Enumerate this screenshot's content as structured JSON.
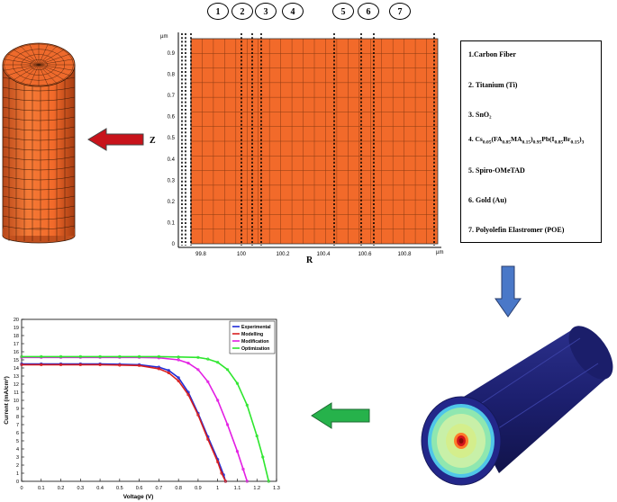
{
  "layer_numbers": [
    "1",
    "2",
    "3",
    "4",
    "5",
    "6",
    "7"
  ],
  "layers": [
    {
      "num": "1.",
      "name": "Carbon Fiber"
    },
    {
      "num": "2.",
      "name": "Titanium (Ti)"
    },
    {
      "num": "3.",
      "name": "SnO₂"
    },
    {
      "num": "4.",
      "name": "Cs0.05(FA0.85MA0.15)0.95Pb(I0.85Br0.15)3"
    },
    {
      "num": "5.",
      "name": "Spiro-OMeTAD"
    },
    {
      "num": "6.",
      "name": "Gold (Au)"
    },
    {
      "num": "7.",
      "name": "Polyolefin Elastromer (POE)"
    }
  ],
  "mesh_plot": {
    "unit_top": "µm",
    "unit_bottom": "µm",
    "z_label": "Z",
    "r_label": "R",
    "z_ticks": [
      "0.9",
      "0.8",
      "0.7",
      "0.6",
      "0.5",
      "0.4",
      "0.3",
      "0.2",
      "0.1",
      "0"
    ],
    "r_ticks": [
      "99.8",
      "100",
      "100.2",
      "100.4",
      "100.6",
      "100.8"
    ]
  },
  "colors": {
    "mesh_fill": "#f26a2a",
    "arrow_red": "#c8131b",
    "arrow_blue": "#4a78c8",
    "arrow_green": "#26b24b"
  },
  "chart_data": {
    "type": "line",
    "xlabel": "Voltage (V)",
    "ylabel": "Current (mA/cm²)",
    "xlim": [
      0,
      1.3
    ],
    "ylim": [
      0,
      20
    ],
    "x_ticks": [
      "0",
      "0.1",
      "0.2",
      "0.3",
      "0.4",
      "0.5",
      "0.6",
      "0.7",
      "0.8",
      "0.9",
      "1",
      "1.1",
      "1.2",
      "1.3"
    ],
    "y_ticks": [
      "0",
      "1",
      "2",
      "3",
      "4",
      "5",
      "6",
      "7",
      "8",
      "9",
      "10",
      "11",
      "12",
      "13",
      "14",
      "15",
      "16",
      "17",
      "18",
      "19",
      "20"
    ],
    "legend_position": "top-right",
    "series": [
      {
        "name": "Experimental",
        "color": "#1f2bd6",
        "x": [
          0,
          0.1,
          0.2,
          0.3,
          0.4,
          0.5,
          0.6,
          0.7,
          0.75,
          0.8,
          0.85,
          0.9,
          0.95,
          1.0,
          1.03,
          1.04
        ],
        "y": [
          14.5,
          14.5,
          14.5,
          14.5,
          14.5,
          14.45,
          14.4,
          14.1,
          13.7,
          12.8,
          11.0,
          8.4,
          5.5,
          2.7,
          0.8,
          0
        ]
      },
      {
        "name": "Modelling",
        "color": "#d81f1f",
        "x": [
          0,
          0.1,
          0.2,
          0.3,
          0.4,
          0.5,
          0.6,
          0.7,
          0.75,
          0.8,
          0.85,
          0.9,
          0.95,
          1.0,
          1.02,
          1.04
        ],
        "y": [
          14.4,
          14.4,
          14.4,
          14.4,
          14.4,
          14.35,
          14.3,
          13.9,
          13.4,
          12.4,
          10.7,
          8.2,
          5.2,
          2.4,
          1.0,
          0
        ]
      },
      {
        "name": "Modification",
        "color": "#e31ee3",
        "x": [
          0,
          0.1,
          0.2,
          0.3,
          0.4,
          0.5,
          0.6,
          0.7,
          0.8,
          0.85,
          0.9,
          0.95,
          1.0,
          1.05,
          1.1,
          1.13,
          1.15
        ],
        "y": [
          15.3,
          15.3,
          15.3,
          15.3,
          15.3,
          15.3,
          15.3,
          15.25,
          15.0,
          14.6,
          13.8,
          12.3,
          10.0,
          7.0,
          3.7,
          1.5,
          0
        ]
      },
      {
        "name": "Optimization",
        "color": "#2ee62e",
        "x": [
          0,
          0.1,
          0.2,
          0.3,
          0.4,
          0.5,
          0.6,
          0.7,
          0.8,
          0.9,
          0.95,
          1.0,
          1.05,
          1.1,
          1.15,
          1.2,
          1.23,
          1.26
        ],
        "y": [
          15.4,
          15.4,
          15.4,
          15.4,
          15.4,
          15.4,
          15.4,
          15.4,
          15.35,
          15.3,
          15.1,
          14.7,
          13.8,
          12.1,
          9.4,
          5.6,
          3.0,
          0
        ]
      }
    ]
  }
}
